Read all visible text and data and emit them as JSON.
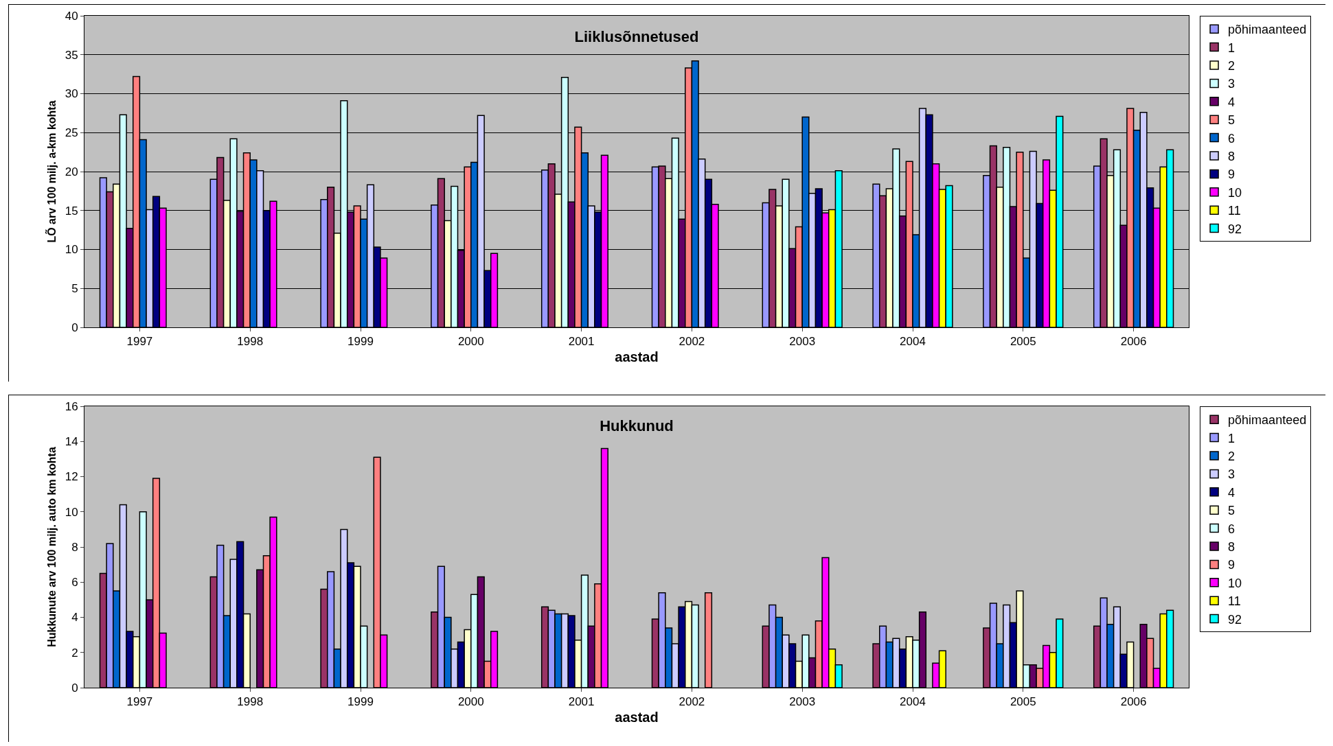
{
  "chart_data": [
    {
      "type": "bar",
      "title": "Liiklusõnnetused",
      "xlabel": "aastad",
      "ylabel": "LÕ arv 100 milj. a-km kohta",
      "categories": [
        "1997",
        "1998",
        "1999",
        "2000",
        "2001",
        "2002",
        "2003",
        "2004",
        "2005",
        "2006"
      ],
      "ylim": [
        0,
        40
      ],
      "yticks": [
        0,
        5,
        10,
        15,
        20,
        25,
        30,
        35,
        40
      ],
      "grid": "y",
      "legend": "right",
      "series": [
        {
          "name": "põhimaanteed",
          "color": "#9999ff",
          "values": [
            19.2,
            19.0,
            16.4,
            15.7,
            20.2,
            20.6,
            16.0,
            18.4,
            19.5,
            20.7
          ]
        },
        {
          "name": "1",
          "color": "#993366",
          "values": [
            17.4,
            21.8,
            18.0,
            19.1,
            21.0,
            20.7,
            17.7,
            16.9,
            23.3,
            24.2
          ]
        },
        {
          "name": "2",
          "color": "#ffffcc",
          "values": [
            18.4,
            16.3,
            12.1,
            13.7,
            17.1,
            19.1,
            15.6,
            17.8,
            18.0,
            19.5
          ]
        },
        {
          "name": "3",
          "color": "#ccffff",
          "values": [
            27.3,
            24.2,
            29.1,
            18.1,
            32.1,
            24.3,
            19.0,
            22.9,
            23.1,
            22.8
          ]
        },
        {
          "name": "4",
          "color": "#660066",
          "values": [
            12.7,
            14.9,
            14.8,
            9.9,
            16.1,
            13.9,
            10.1,
            14.3,
            15.5,
            13.1
          ]
        },
        {
          "name": "5",
          "color": "#ff8080",
          "values": [
            32.2,
            22.4,
            15.6,
            20.6,
            25.7,
            33.3,
            12.9,
            21.3,
            22.5,
            28.1
          ]
        },
        {
          "name": "6",
          "color": "#0066cc",
          "values": [
            24.1,
            21.5,
            13.9,
            21.2,
            22.4,
            34.2,
            27.0,
            11.9,
            8.9,
            25.3
          ]
        },
        {
          "name": "8",
          "color": "#ccccff",
          "values": [
            15.1,
            20.1,
            18.3,
            27.2,
            15.6,
            21.6,
            17.2,
            28.1,
            22.6,
            27.6
          ]
        },
        {
          "name": "9",
          "color": "#000080",
          "values": [
            16.8,
            15.0,
            10.3,
            7.3,
            14.8,
            19.0,
            17.8,
            27.3,
            15.9,
            17.9
          ]
        },
        {
          "name": "10",
          "color": "#ff00ff",
          "values": [
            15.3,
            16.2,
            8.9,
            9.5,
            22.1,
            15.8,
            14.7,
            21.0,
            21.5,
            15.3
          ]
        },
        {
          "name": "11",
          "color": "#ffff00",
          "values": [
            null,
            null,
            null,
            null,
            null,
            null,
            15.1,
            17.7,
            17.6,
            20.6
          ]
        },
        {
          "name": "92",
          "color": "#00ffff",
          "values": [
            null,
            null,
            null,
            null,
            null,
            null,
            20.1,
            18.2,
            27.1,
            22.8
          ]
        }
      ]
    },
    {
      "type": "bar",
      "title": "Hukkunud",
      "xlabel": "aastad",
      "ylabel": "Hukkunute arv 100 milj. auto km kohta",
      "categories": [
        "1997",
        "1998",
        "1999",
        "2000",
        "2001",
        "2002",
        "2003",
        "2004",
        "2005",
        "2006"
      ],
      "ylim": [
        0,
        16
      ],
      "yticks": [
        0,
        2,
        4,
        6,
        8,
        10,
        12,
        14,
        16
      ],
      "grid": false,
      "legend": "right",
      "series": [
        {
          "name": "põhimaanteed",
          "color": "#993366",
          "values": [
            6.5,
            6.3,
            5.6,
            4.3,
            4.6,
            3.9,
            3.5,
            2.5,
            3.4,
            3.5
          ]
        },
        {
          "name": "1",
          "color": "#9999ff",
          "values": [
            8.2,
            8.1,
            6.6,
            6.9,
            4.4,
            5.4,
            4.7,
            3.5,
            4.8,
            5.1
          ]
        },
        {
          "name": "2",
          "color": "#0066cc",
          "values": [
            5.5,
            4.1,
            2.2,
            4.0,
            4.2,
            3.4,
            4.0,
            2.6,
            2.5,
            3.6
          ]
        },
        {
          "name": "3",
          "color": "#ccccff",
          "values": [
            10.4,
            7.3,
            9.0,
            2.2,
            4.2,
            2.5,
            3.0,
            2.8,
            4.7,
            4.6
          ]
        },
        {
          "name": "4",
          "color": "#000080",
          "values": [
            3.2,
            8.3,
            7.1,
            2.6,
            4.1,
            4.6,
            2.5,
            2.2,
            3.7,
            1.9
          ]
        },
        {
          "name": "5",
          "color": "#ffffcc",
          "values": [
            2.9,
            4.2,
            6.9,
            3.3,
            2.7,
            4.9,
            1.5,
            2.9,
            5.5,
            2.6
          ]
        },
        {
          "name": "6",
          "color": "#ccffff",
          "values": [
            10.0,
            null,
            3.5,
            5.3,
            6.4,
            4.7,
            3.0,
            2.7,
            1.3,
            null
          ]
        },
        {
          "name": "8",
          "color": "#660066",
          "values": [
            5.0,
            6.7,
            null,
            6.3,
            3.5,
            null,
            1.7,
            4.3,
            1.3,
            3.6
          ]
        },
        {
          "name": "9",
          "color": "#ff8080",
          "values": [
            11.9,
            7.5,
            13.1,
            1.5,
            5.9,
            5.4,
            3.8,
            null,
            1.1,
            2.8
          ]
        },
        {
          "name": "10",
          "color": "#ff00ff",
          "values": [
            3.1,
            9.7,
            3.0,
            3.2,
            13.6,
            null,
            7.4,
            1.4,
            2.4,
            1.1
          ]
        },
        {
          "name": "11",
          "color": "#ffff00",
          "values": [
            null,
            null,
            null,
            null,
            null,
            null,
            2.2,
            2.1,
            2.0,
            4.2
          ]
        },
        {
          "name": "92",
          "color": "#00ffff",
          "values": [
            null,
            null,
            null,
            null,
            null,
            null,
            1.3,
            null,
            3.9,
            4.4
          ]
        }
      ]
    }
  ]
}
